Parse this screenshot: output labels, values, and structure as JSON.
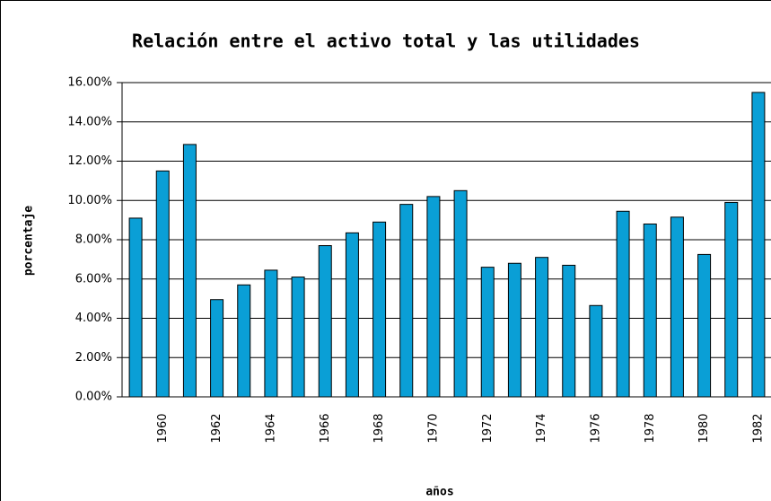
{
  "chart_data": {
    "type": "bar",
    "title": "Relación entre el activo total y las utilidades",
    "x_label": "años",
    "y_label": "porcentaje",
    "categories": [
      null,
      "1960",
      null,
      "1962",
      null,
      "1964",
      null,
      "1966",
      null,
      "1968",
      null,
      "1970",
      null,
      "1972",
      null,
      "1974",
      null,
      "1976",
      null,
      "1978",
      null,
      "1980",
      null,
      "1982"
    ],
    "values": [
      9.1,
      11.5,
      12.85,
      4.95,
      5.7,
      6.45,
      6.1,
      7.7,
      8.35,
      8.9,
      9.8,
      10.2,
      10.5,
      6.6,
      6.8,
      7.1,
      6.7,
      4.65,
      9.45,
      8.8,
      9.15,
      7.25,
      9.9,
      15.5
    ],
    "color": "#0a9fd6",
    "ylim": [
      0,
      16
    ],
    "yticks": [
      {
        "value": 0,
        "label": "0.00%"
      },
      {
        "value": 2,
        "label": "2.00%"
      },
      {
        "value": 4,
        "label": "4.00%"
      },
      {
        "value": 6,
        "label": "6.00%"
      },
      {
        "value": 8,
        "label": "8.00%"
      },
      {
        "value": 10,
        "label": "10.00%"
      },
      {
        "value": 12,
        "label": "12.00%"
      },
      {
        "value": 14,
        "label": "14.00%"
      },
      {
        "value": 16,
        "label": "16.00%"
      }
    ],
    "grid": true
  }
}
